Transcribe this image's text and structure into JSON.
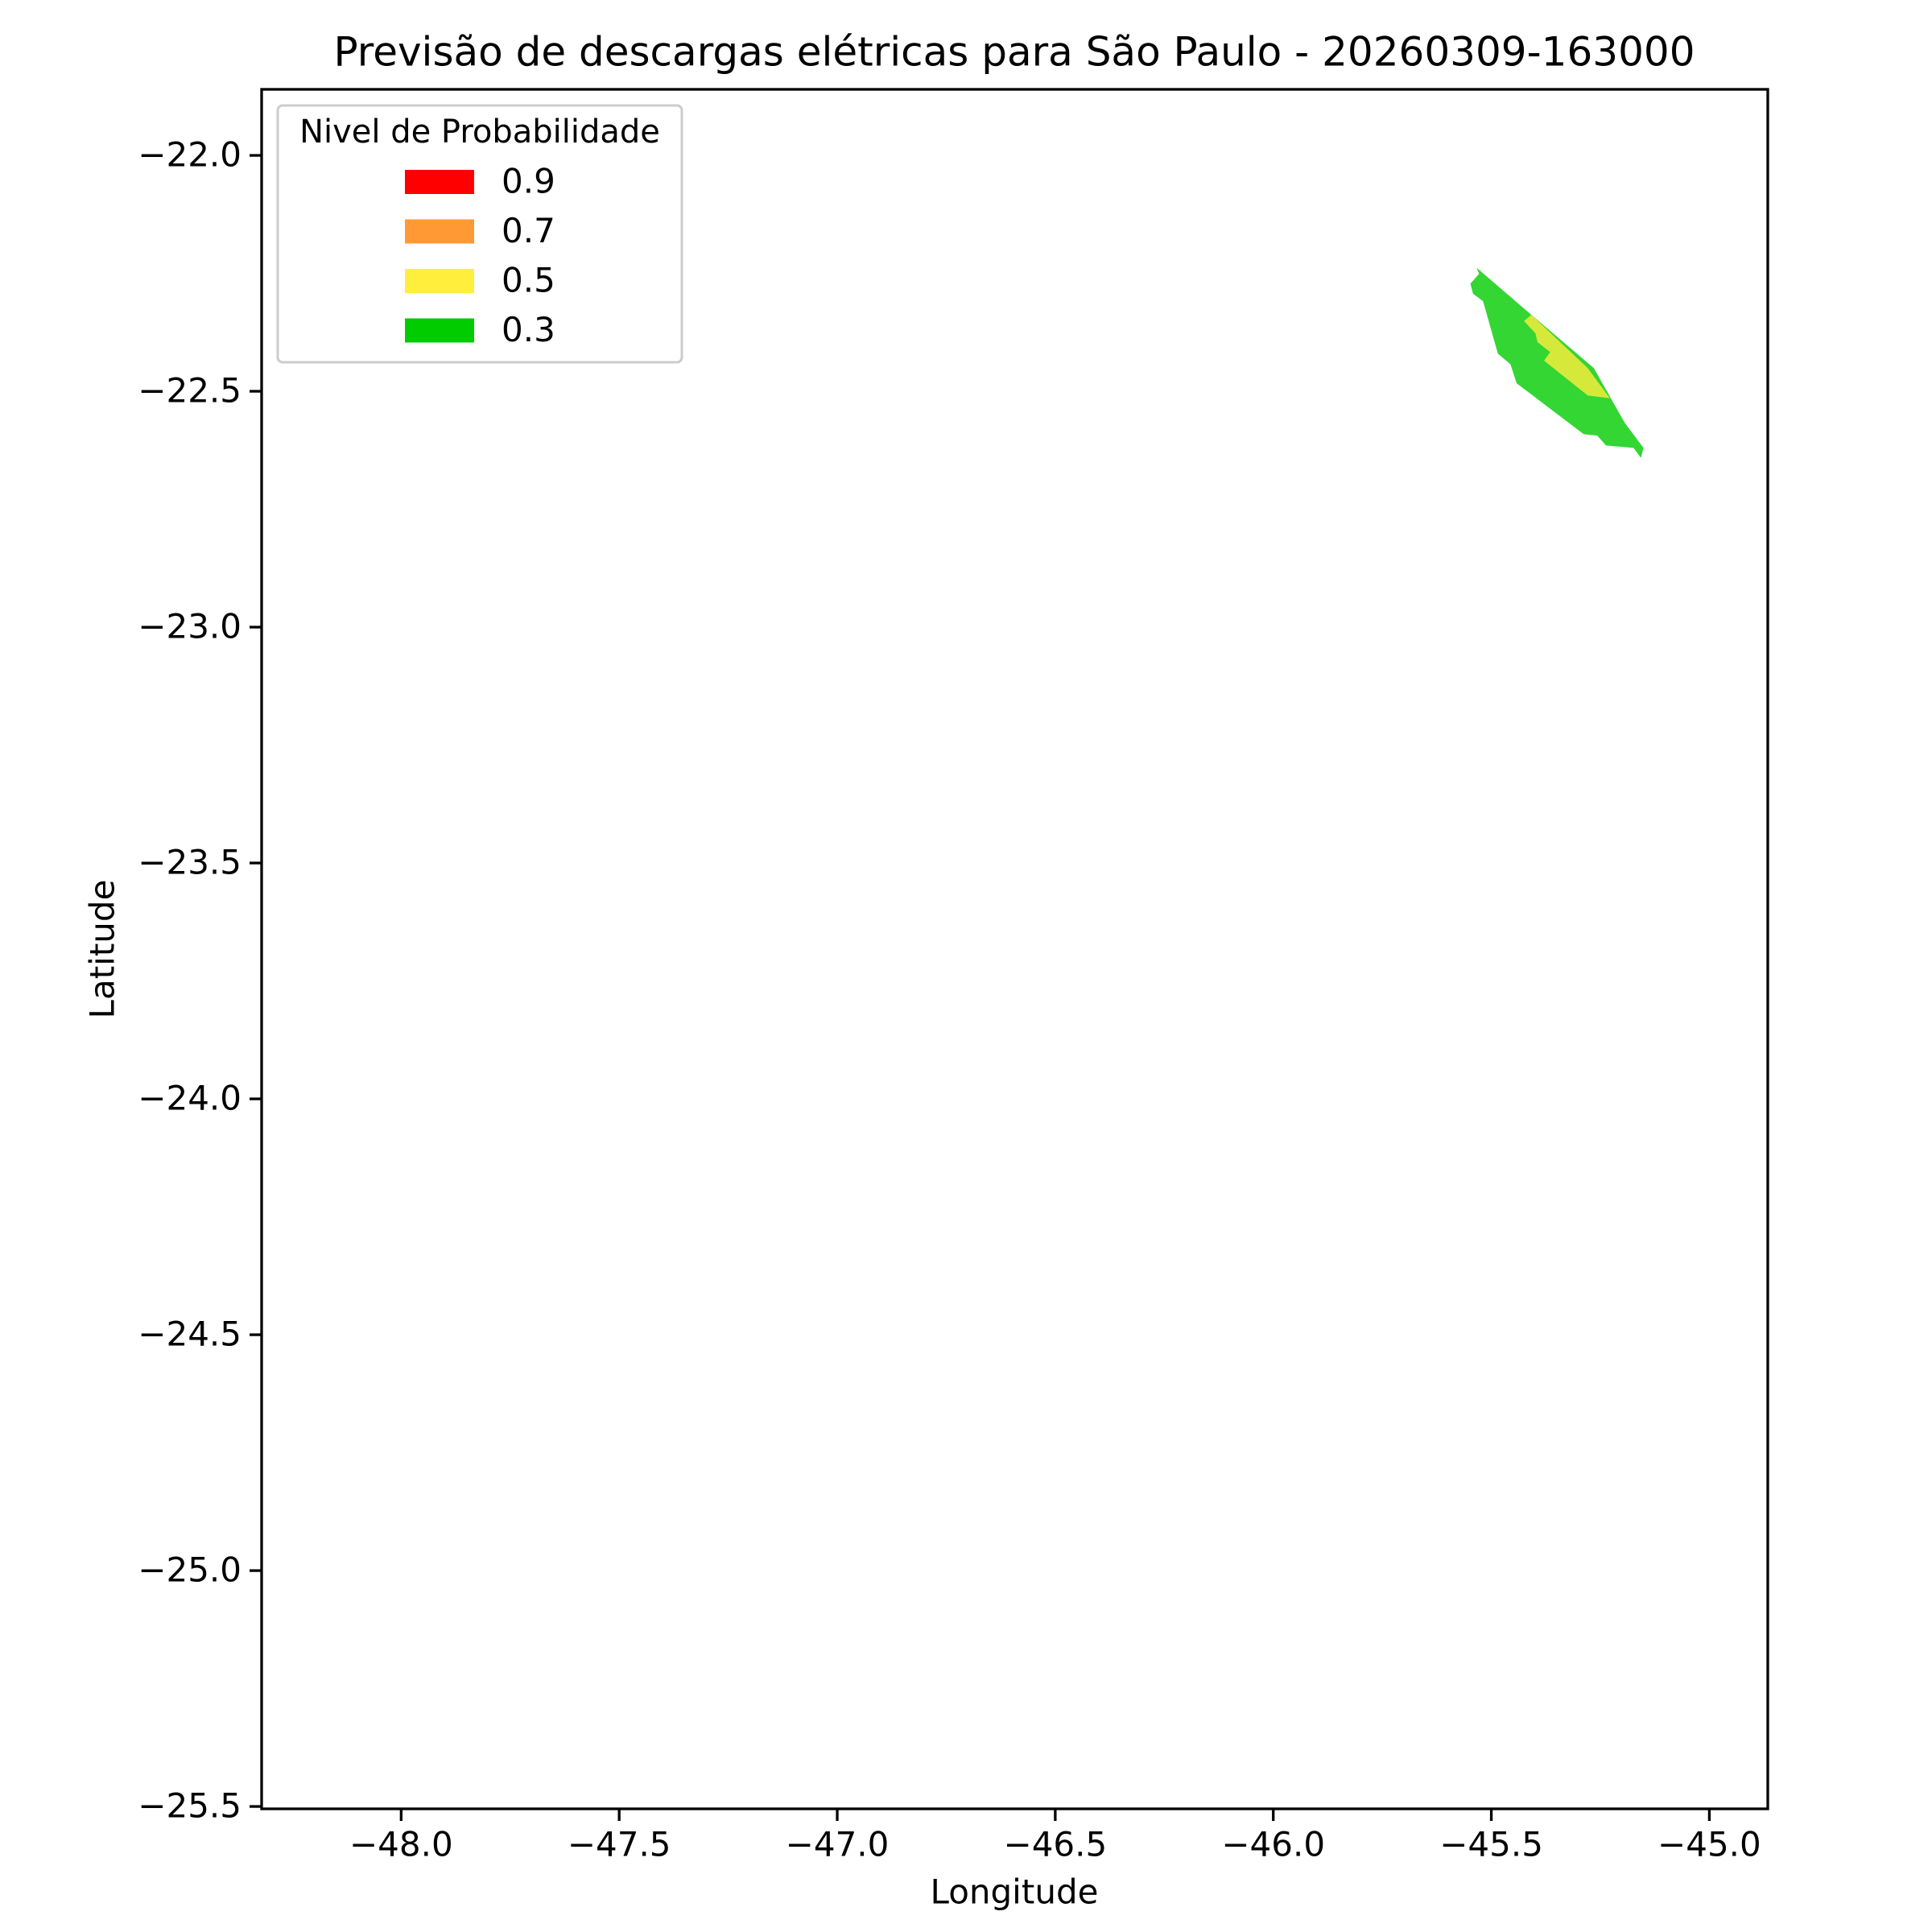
{
  "chart_data": {
    "type": "contour",
    "title": "Previsão de descargas elétricas para São Paulo - 20260309-163000",
    "xlabel": "Longitude",
    "ylabel": "Latitude",
    "xlim": [
      -48.32,
      -44.866
    ],
    "ylim": [
      -25.505,
      -21.86
    ],
    "xticks": [
      {
        "value": -48.0,
        "label": "−48.0"
      },
      {
        "value": -47.5,
        "label": "−47.5"
      },
      {
        "value": -47.0,
        "label": "−47.0"
      },
      {
        "value": -46.5,
        "label": "−46.5"
      },
      {
        "value": -46.0,
        "label": "−46.0"
      },
      {
        "value": -45.5,
        "label": "−45.5"
      },
      {
        "value": -45.0,
        "label": "−45.0"
      }
    ],
    "yticks": [
      {
        "value": -22.0,
        "label": "−22.0"
      },
      {
        "value": -22.5,
        "label": "−22.5"
      },
      {
        "value": -23.0,
        "label": "−23.0"
      },
      {
        "value": -23.5,
        "label": "−23.5"
      },
      {
        "value": -24.0,
        "label": "−24.0"
      },
      {
        "value": -24.5,
        "label": "−24.5"
      },
      {
        "value": -25.0,
        "label": "−25.0"
      },
      {
        "value": -25.5,
        "label": "−25.5"
      }
    ],
    "legend_title": "Nivel de Probabilidade",
    "legend_loc": "upper left",
    "series": [
      {
        "name": "0.9",
        "color": "#ff0000",
        "polygons": []
      },
      {
        "name": "0.7",
        "color": "#ff9933",
        "polygons": []
      },
      {
        "name": "0.5",
        "color": "#ffee3c",
        "polygons": [
          {
            "x": [
              -45.425,
              -45.408,
              -45.351,
              -45.279,
              -45.228,
              -45.279,
              -45.379,
              -45.365,
              -45.394,
              -45.399
            ],
            "y": [
              -22.351,
              -22.338,
              -22.388,
              -22.451,
              -22.515,
              -22.509,
              -22.435,
              -22.417,
              -22.396,
              -22.377
            ]
          }
        ]
      },
      {
        "name": "0.3",
        "color": "#00cc00",
        "polygons": [
          {
            "x": [
              -45.534,
              -45.408,
              -45.265,
              -45.194,
              -45.151,
              -45.157,
              -45.174,
              -45.237,
              -45.257,
              -45.288,
              -45.442,
              -45.456,
              -45.485,
              -45.519,
              -45.542,
              -45.548,
              -45.528
            ],
            "y": [
              -22.238,
              -22.338,
              -22.451,
              -22.567,
              -22.62,
              -22.641,
              -22.62,
              -22.615,
              -22.594,
              -22.591,
              -22.483,
              -22.443,
              -22.42,
              -22.309,
              -22.293,
              -22.272,
              -22.251
            ]
          }
        ]
      }
    ]
  }
}
